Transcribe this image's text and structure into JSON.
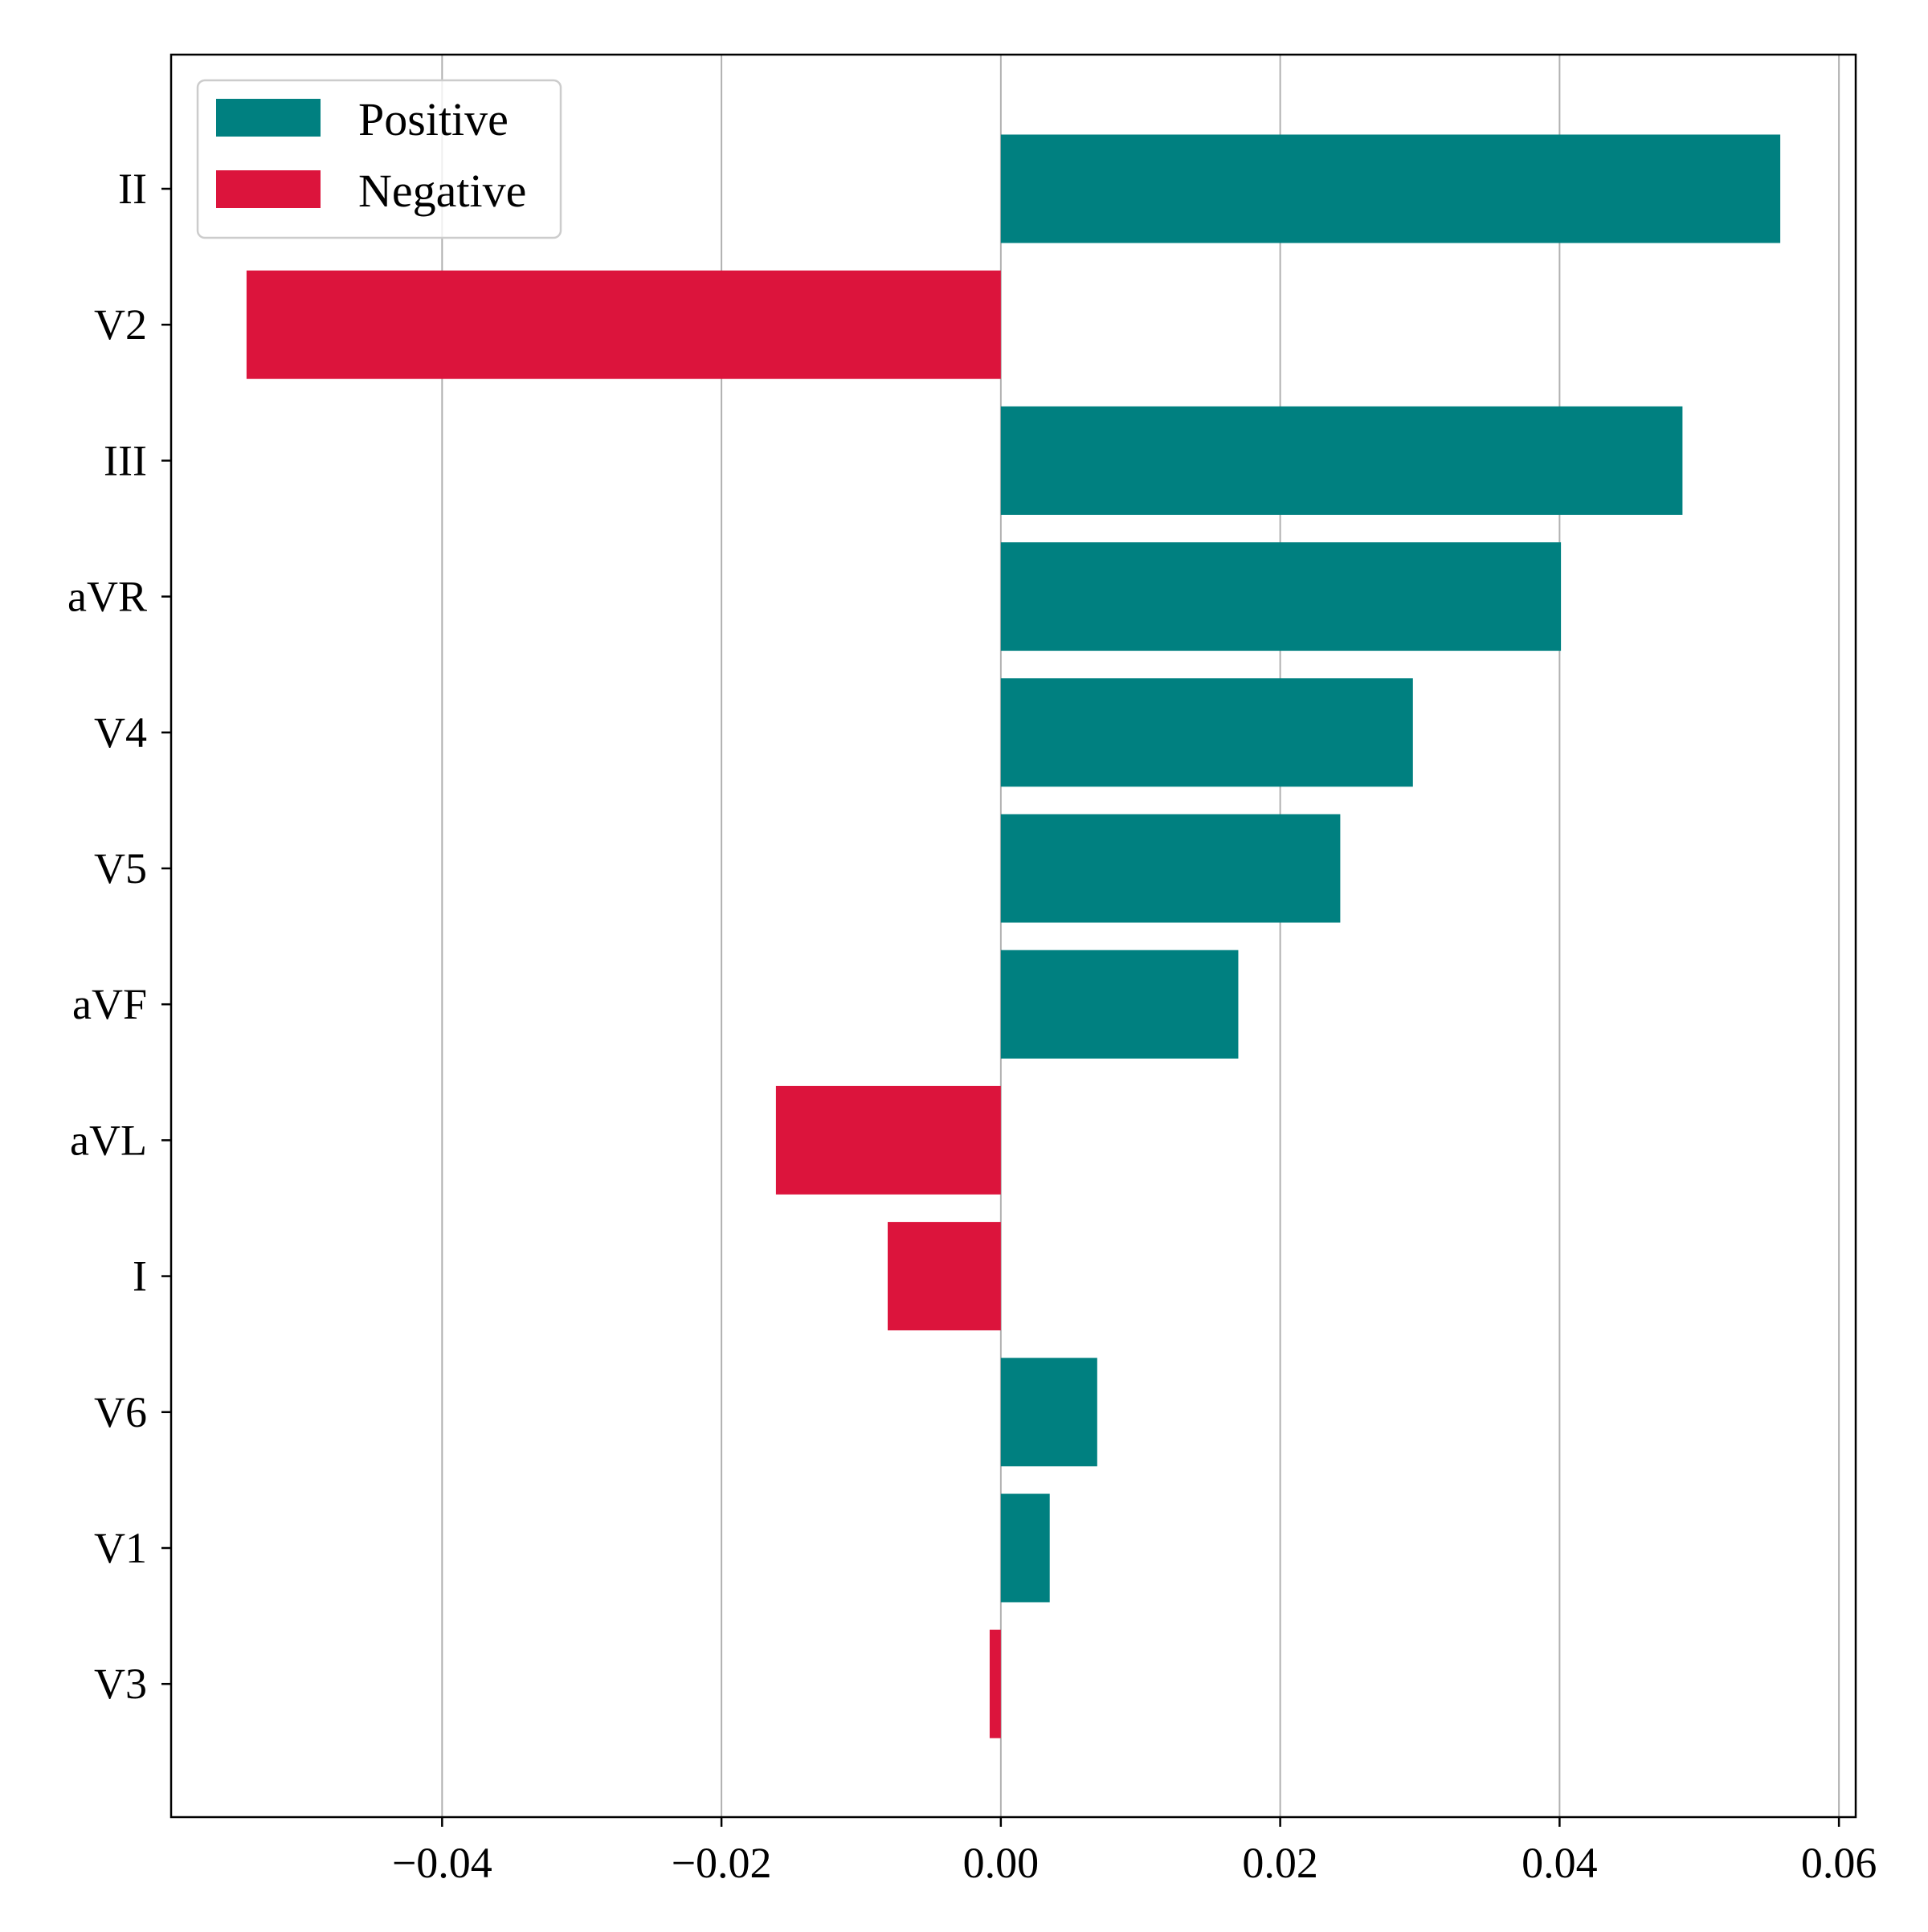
{
  "chart_data": {
    "type": "bar",
    "orientation": "horizontal",
    "title": "",
    "xlabel": "",
    "ylabel": "",
    "categories": [
      "II",
      "V2",
      "III",
      "aVR",
      "V4",
      "V5",
      "aVF",
      "aVL",
      "I",
      "V6",
      "V1",
      "V3"
    ],
    "values": [
      0.0558,
      -0.054,
      0.0488,
      0.0401,
      0.0295,
      0.0243,
      0.017,
      -0.0161,
      -0.0081,
      0.0069,
      0.0035,
      -0.0008
    ],
    "xlim": [
      -0.0594,
      0.0612
    ],
    "xticks": [
      -0.04,
      -0.02,
      0.0,
      0.02,
      0.04,
      0.06
    ],
    "xtick_labels": [
      "−0.04",
      "−0.02",
      "0.00",
      "0.02",
      "0.04",
      "0.06"
    ],
    "grid": "vertical",
    "legend": {
      "placement": "top-left",
      "entries": [
        {
          "label": "Positive",
          "color": "#008080"
        },
        {
          "label": "Negative",
          "color": "#dc143c"
        }
      ]
    },
    "colors": {
      "positive": "#008080",
      "negative": "#dc143c"
    }
  }
}
